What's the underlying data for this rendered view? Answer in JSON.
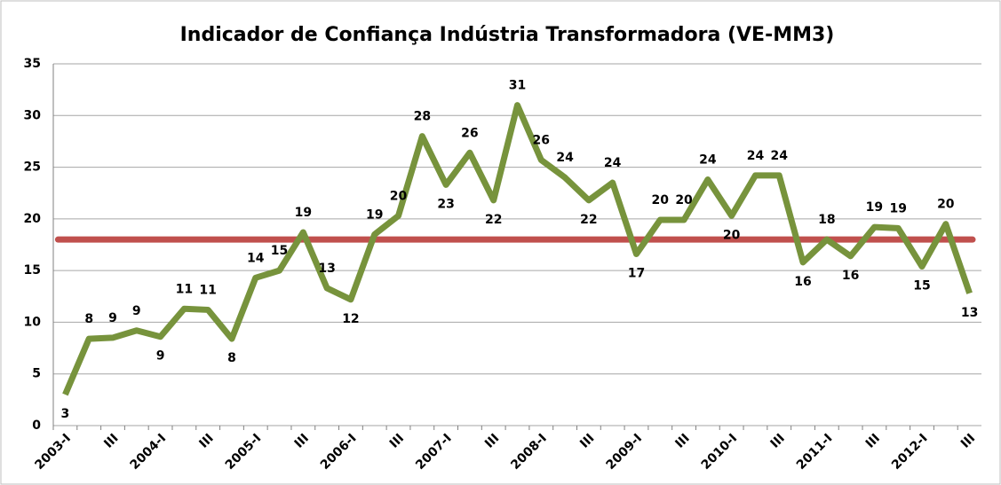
{
  "chart_data": {
    "type": "line",
    "title": "Indicador de Confiança Indústria Transformadora (VE-MM3)",
    "categories": [
      "2003-I",
      null,
      "III",
      null,
      "2004-I",
      null,
      "III",
      null,
      "2005-I",
      null,
      "III",
      null,
      "2006-I",
      null,
      "III",
      null,
      "2007-I",
      null,
      "III",
      null,
      "2008-I",
      null,
      "III",
      null,
      "2009-I",
      null,
      "III",
      null,
      "2010-I",
      null,
      "III",
      null,
      "2011-I",
      null,
      "III",
      null,
      "2012-I",
      null,
      "III"
    ],
    "series": [
      {
        "color": "#77933c",
        "values": [
          3.0,
          8.4,
          8.5,
          9.2,
          8.6,
          11.3,
          11.2,
          8.4,
          14.3,
          15.0,
          18.7,
          13.3,
          12.2,
          18.5,
          20.3,
          28.0,
          23.3,
          26.4,
          21.8,
          31.0,
          25.7,
          24.0,
          21.8,
          23.5,
          16.6,
          19.9,
          19.9,
          23.8,
          20.3,
          24.2,
          24.2,
          15.8,
          18.0,
          16.4,
          19.2,
          19.1,
          15.4,
          19.5,
          12.8
        ],
        "value_labels": [
          "3",
          "8",
          "9",
          "9",
          "9",
          "11",
          "11",
          "8",
          "14",
          "15",
          "19",
          "13",
          "12",
          "19",
          "20",
          "28",
          "23",
          "26",
          "22",
          "31",
          "26",
          "24",
          "22",
          "24",
          "17",
          "20",
          "20",
          "24",
          "20",
          "24",
          "24",
          "16",
          "18",
          "16",
          "19",
          "19",
          "15",
          "20",
          "13"
        ]
      }
    ],
    "reference_line": {
      "value": 18,
      "color": "#c0504d"
    },
    "ylim": [
      0,
      35
    ],
    "yticks": [
      0,
      5,
      10,
      15,
      20,
      25,
      30,
      35
    ],
    "grid": true
  }
}
